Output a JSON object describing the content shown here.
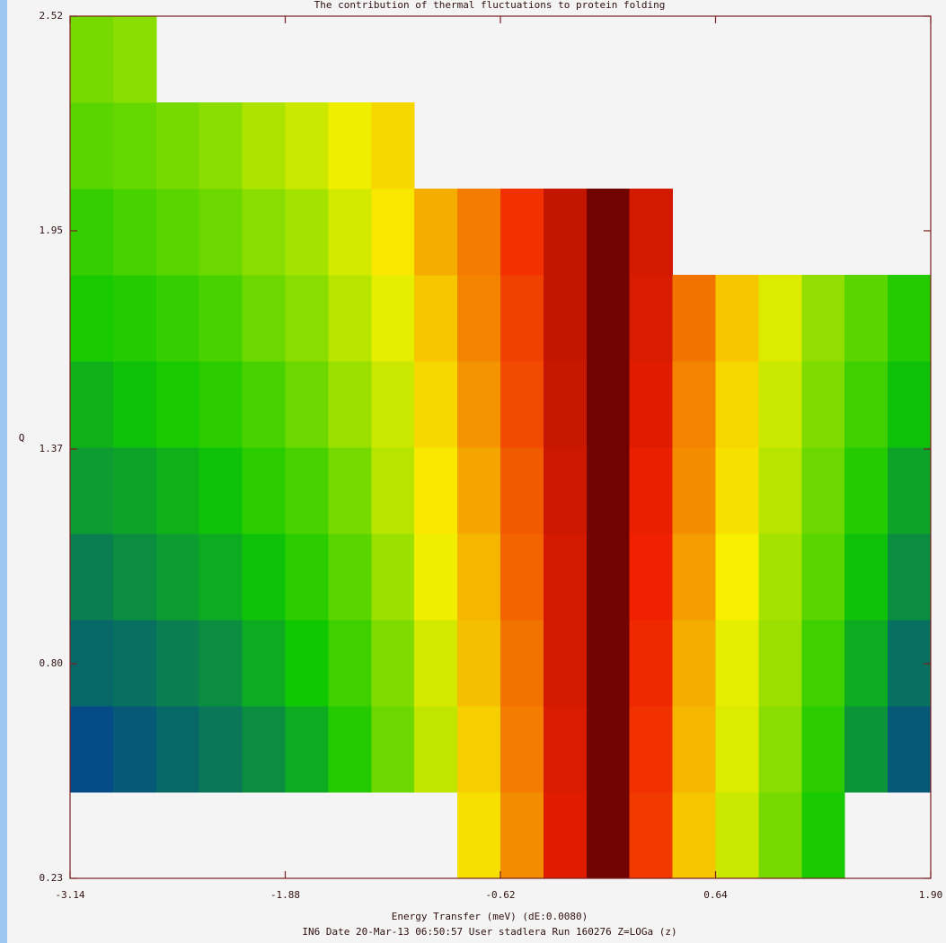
{
  "chart_data": {
    "type": "heatmap",
    "title": "The contribution of thermal fluctuations to protein folding",
    "x_label": "Energy Transfer (meV) (dE:0.0080)",
    "y_label": "Q",
    "footer": "IN6 Date 20-Mar-13 06:50:57 User stadlera Run 160276 Z=LOGa (z)",
    "xlim": [
      -3.14,
      {
        "value": 1.9,
        "label": "1.90"
      }
    ],
    "ylim": [
      0.23,
      2.52
    ],
    "xticks": [
      -3.14,
      -1.88,
      -0.62,
      0.64,
      {
        "value": 1.9,
        "label": "1.90"
      }
    ],
    "yticks": [
      0.23,
      {
        "value": 0.8,
        "label": "0.80"
      },
      1.37,
      1.95,
      2.52
    ],
    "x_bins": [
      -3.14,
      -2.888,
      -2.636,
      -2.384,
      -2.132,
      -1.88,
      -1.628,
      -1.376,
      -1.124,
      -0.872,
      -0.62,
      -0.368,
      -0.116,
      0.136,
      0.388,
      0.64,
      0.892,
      1.144,
      1.396,
      1.648,
      1.9
    ],
    "y_bins": [
      0.23,
      0.459,
      0.688,
      0.917,
      1.146,
      1.375,
      1.604,
      1.833,
      2.062,
      2.291,
      2.52
    ],
    "zlim": [
      0,
      1
    ],
    "colormap": [
      "#0010c8",
      "#10c800",
      "#f8f000",
      "#f02000",
      "#600000"
    ],
    "z": [
      [
        null,
        null,
        null,
        null,
        null,
        null,
        null,
        null,
        null,
        0.52,
        0.62,
        0.78,
        0.97,
        0.72,
        0.55,
        0.45,
        0.36,
        0.26,
        null,
        null
      ],
      [
        0.08,
        0.1,
        0.12,
        0.14,
        0.17,
        0.21,
        0.27,
        0.35,
        0.44,
        0.54,
        0.64,
        0.79,
        0.97,
        0.73,
        0.57,
        0.47,
        0.38,
        0.28,
        0.18,
        0.1
      ],
      [
        0.12,
        0.13,
        0.15,
        0.17,
        0.21,
        0.25,
        0.3,
        0.37,
        0.46,
        0.56,
        0.65,
        0.8,
        0.97,
        0.74,
        0.58,
        0.48,
        0.4,
        0.3,
        0.21,
        0.13
      ],
      [
        0.15,
        0.17,
        0.19,
        0.21,
        0.24,
        0.28,
        0.33,
        0.4,
        0.49,
        0.57,
        0.67,
        0.8,
        0.97,
        0.75,
        0.6,
        0.5,
        0.41,
        0.33,
        0.24,
        0.17
      ],
      [
        0.19,
        0.2,
        0.22,
        0.24,
        0.28,
        0.31,
        0.36,
        0.43,
        0.51,
        0.59,
        0.68,
        0.81,
        0.97,
        0.76,
        0.62,
        0.52,
        0.43,
        0.35,
        0.27,
        0.2
      ],
      [
        0.22,
        0.24,
        0.26,
        0.28,
        0.31,
        0.35,
        0.4,
        0.45,
        0.53,
        0.61,
        0.7,
        0.82,
        0.97,
        0.78,
        0.63,
        0.53,
        0.45,
        0.37,
        0.3,
        0.24
      ],
      [
        0.26,
        0.27,
        0.29,
        0.31,
        0.35,
        0.38,
        0.43,
        0.48,
        0.55,
        0.63,
        0.71,
        0.83,
        0.97,
        0.79,
        0.65,
        0.55,
        0.47,
        0.39,
        0.33,
        0.27
      ],
      [
        0.29,
        0.31,
        0.33,
        0.35,
        0.38,
        0.41,
        0.46,
        0.51,
        0.58,
        0.64,
        0.73,
        0.83,
        0.97,
        0.8,
        null,
        null,
        null,
        null,
        null,
        null
      ],
      [
        0.33,
        0.34,
        0.36,
        0.38,
        0.42,
        0.45,
        0.49,
        0.53,
        null,
        null,
        null,
        null,
        null,
        null,
        null,
        null,
        null,
        null,
        null,
        null
      ],
      [
        0.36,
        0.38,
        null,
        null,
        null,
        null,
        null,
        null,
        null,
        null,
        null,
        null,
        null,
        null,
        null,
        null,
        null,
        null,
        null,
        null
      ]
    ]
  }
}
